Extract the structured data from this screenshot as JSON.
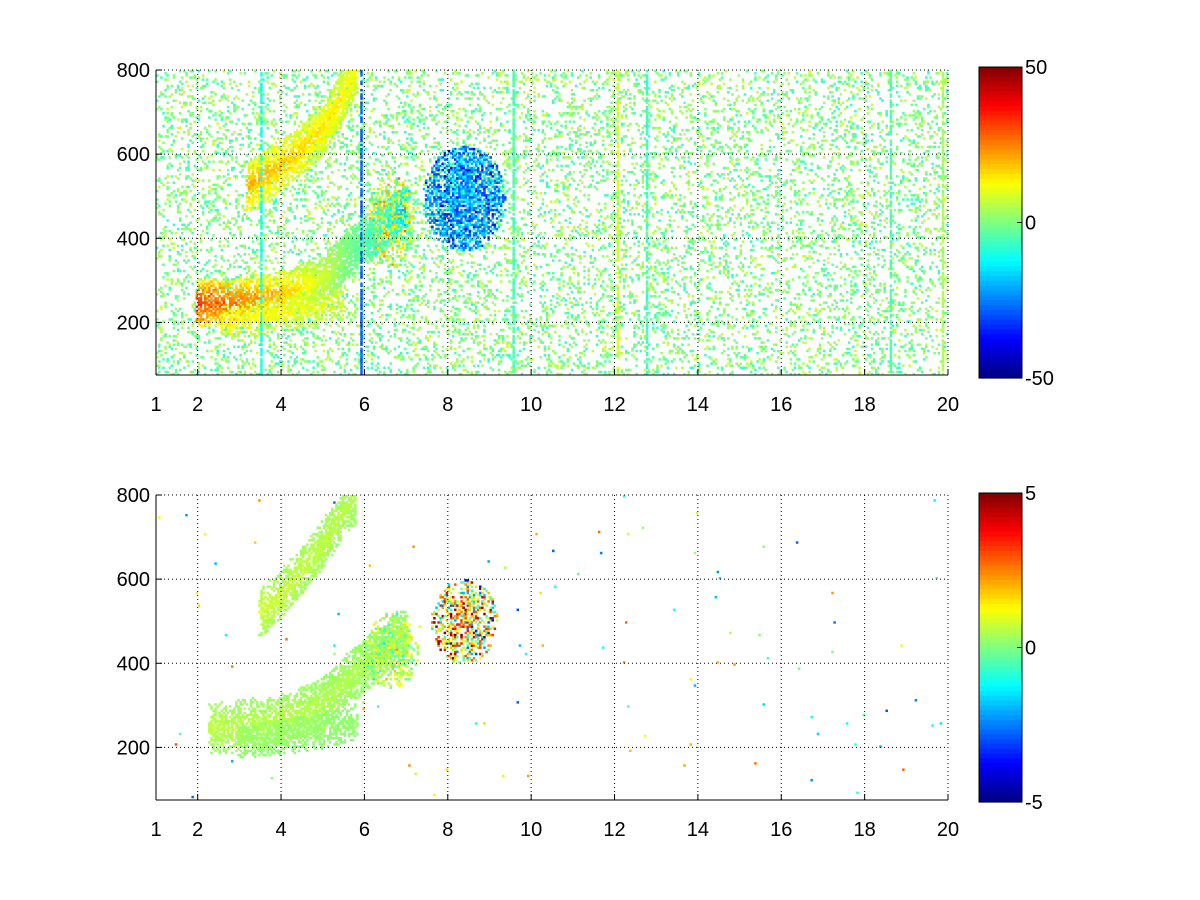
{
  "chart_data": [
    {
      "type": "heatmap",
      "title": "",
      "xlabel": "",
      "ylabel": "",
      "xlim": [
        1,
        20
      ],
      "ylim": [
        75,
        800
      ],
      "x_ticks": [
        1,
        2,
        4,
        6,
        8,
        10,
        12,
        14,
        16,
        18,
        20
      ],
      "y_ticks": [
        200,
        400,
        600,
        800
      ],
      "grid": true,
      "colormap": "jet",
      "clim": [
        -50,
        50
      ],
      "colorbar_ticks": [
        50,
        0,
        -50
      ],
      "colorbar_side": "right",
      "features": [
        {
          "kind": "band",
          "points": [
            [
              2.0,
              245
            ],
            [
              3.0,
              250
            ],
            [
              4.0,
              265
            ],
            [
              4.6,
              285
            ],
            [
              5.2,
              320
            ],
            [
              5.6,
              360
            ],
            [
              6.2,
              410
            ],
            [
              6.6,
              440
            ],
            [
              7.0,
              470
            ]
          ],
          "start_value": 32,
          "end_value": -20,
          "width": 55,
          "density": 0.92
        },
        {
          "kind": "band",
          "points": [
            [
              3.2,
              520
            ],
            [
              3.8,
              560
            ],
            [
              4.4,
              600
            ],
            [
              5.0,
              660
            ],
            [
              5.5,
              740
            ],
            [
              5.8,
              800
            ]
          ],
          "start_value": 20,
          "end_value": 12,
          "width": 60,
          "density": 0.75
        },
        {
          "kind": "band",
          "points": [
            [
              2.6,
              200
            ],
            [
              3.5,
              215
            ],
            [
              4.5,
              230
            ],
            [
              5.5,
              250
            ]
          ],
          "start_value": 15,
          "end_value": 10,
          "width": 40,
          "density": 0.65
        },
        {
          "kind": "blob",
          "x": [
            7.4,
            9.4
          ],
          "y": [
            370,
            620
          ],
          "value": -22,
          "spread": 14,
          "density": 0.85
        },
        {
          "kind": "blob",
          "x": [
            6.1,
            7.2
          ],
          "y": [
            330,
            560
          ],
          "value": 6,
          "spread": 16,
          "density": 0.6
        },
        {
          "kind": "stripe",
          "x": 3.55,
          "y": [
            75,
            800
          ],
          "value": -10
        },
        {
          "kind": "stripe",
          "x": 5.9,
          "y": [
            75,
            800
          ],
          "value": -28
        },
        {
          "kind": "stripe",
          "x": 9.6,
          "y": [
            75,
            800
          ],
          "value": -5
        },
        {
          "kind": "stripe",
          "x": 12.05,
          "y": [
            75,
            800
          ],
          "value": 8
        },
        {
          "kind": "stripe",
          "x": 12.75,
          "y": [
            75,
            800
          ],
          "value": -6
        },
        {
          "kind": "stripe",
          "x": 18.6,
          "y": [
            75,
            800
          ],
          "value": -5
        },
        {
          "kind": "stripe",
          "x": 19.9,
          "y": [
            75,
            800
          ],
          "value": 4
        }
      ],
      "background_noise": {
        "x": [
          1,
          20
        ],
        "y": [
          75,
          800
        ],
        "value_range": [
          -8,
          8
        ],
        "density": 0.18
      }
    },
    {
      "type": "heatmap",
      "title": "",
      "xlabel": "",
      "ylabel": "",
      "xlim": [
        1,
        20
      ],
      "ylim": [
        75,
        800
      ],
      "x_ticks": [
        1,
        2,
        4,
        6,
        8,
        10,
        12,
        14,
        16,
        18,
        20
      ],
      "y_ticks": [
        200,
        400,
        600,
        800
      ],
      "grid": true,
      "colormap": "jet",
      "clim": [
        -5,
        5
      ],
      "colorbar_ticks": [
        5,
        0,
        -5
      ],
      "colorbar_side": "right",
      "features": [
        {
          "kind": "band",
          "points": [
            [
              2.3,
              245
            ],
            [
              3.0,
              250
            ],
            [
              4.0,
              265
            ],
            [
              4.6,
              285
            ],
            [
              5.2,
              320
            ],
            [
              5.6,
              360
            ],
            [
              6.2,
              410
            ],
            [
              6.6,
              440
            ],
            [
              7.0,
              470
            ]
          ],
          "start_value": 0.6,
          "end_value": 0.4,
          "width": 60,
          "density": 0.8
        },
        {
          "kind": "band",
          "points": [
            [
              3.5,
              520
            ],
            [
              4.0,
              560
            ],
            [
              4.5,
              620
            ],
            [
              5.0,
              680
            ],
            [
              5.5,
              760
            ],
            [
              5.8,
              790
            ]
          ],
          "start_value": 0.8,
          "end_value": 0.5,
          "width": 55,
          "density": 0.6
        },
        {
          "kind": "band",
          "points": [
            [
              3.0,
              210
            ],
            [
              4.0,
              225
            ],
            [
              5.0,
              240
            ],
            [
              5.8,
              260
            ]
          ],
          "start_value": 0.3,
          "end_value": 0.2,
          "width": 40,
          "density": 0.75
        },
        {
          "kind": "blob",
          "x": [
            7.6,
            9.2
          ],
          "y": [
            400,
            600
          ],
          "value": 1.5,
          "spread": 3.5,
          "density": 0.55
        },
        {
          "kind": "blob",
          "x": [
            6.0,
            7.3
          ],
          "y": [
            340,
            520
          ],
          "value": 0.5,
          "spread": 1.2,
          "density": 0.5
        }
      ],
      "background_noise": {
        "x": [
          1,
          20
        ],
        "y": [
          75,
          800
        ],
        "value_range": [
          -3,
          3
        ],
        "density": 0.002
      }
    }
  ]
}
